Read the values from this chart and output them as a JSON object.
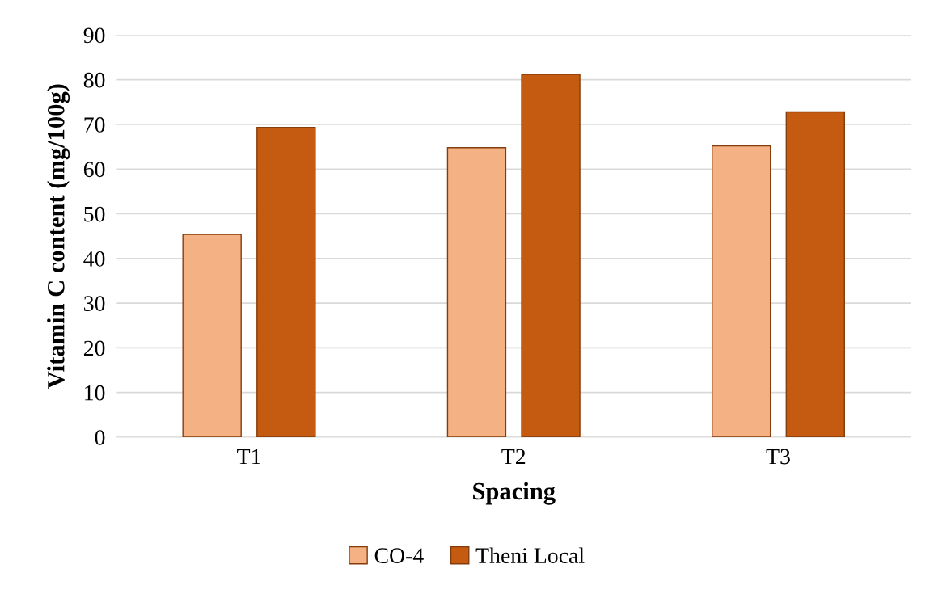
{
  "chart_data": {
    "type": "bar",
    "xlabel": "Spacing",
    "ylabel": "Vitamin C content (mg/100g)",
    "categories": [
      "T1",
      "T2",
      "T3"
    ],
    "series": [
      {
        "name": "CO-4",
        "color": "#f4b183",
        "values": [
          45.4,
          64.8,
          65.2
        ]
      },
      {
        "name": "Theni Local",
        "color": "#c55a11",
        "values": [
          69.3,
          81.2,
          72.8
        ]
      }
    ],
    "ylim": [
      0,
      90
    ],
    "yticks": [
      0,
      10,
      20,
      30,
      40,
      50,
      60,
      70,
      80,
      90
    ],
    "grid": "y",
    "legend": "bottom"
  }
}
